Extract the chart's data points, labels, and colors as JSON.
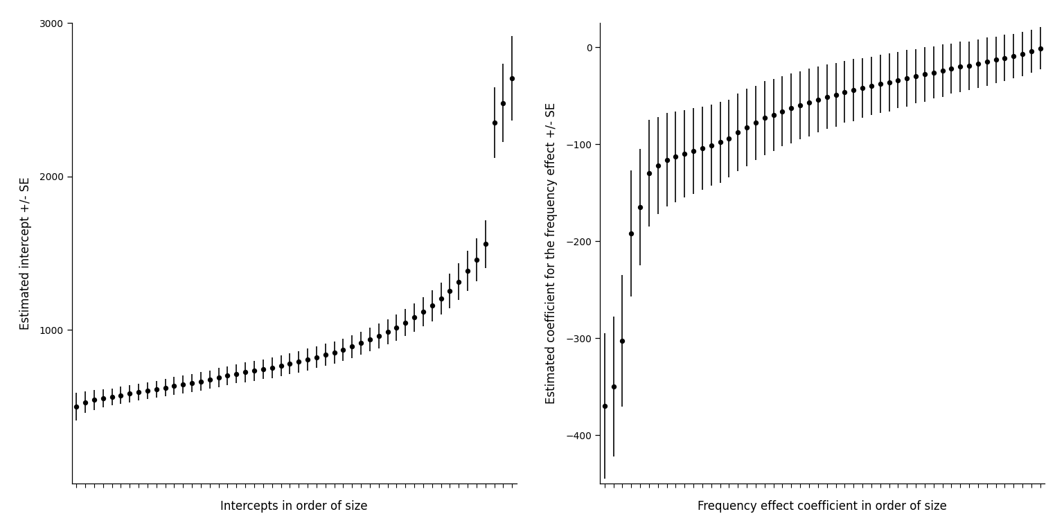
{
  "n_subjects": 50,
  "intercepts": [
    500,
    530,
    545,
    555,
    565,
    575,
    585,
    595,
    605,
    615,
    625,
    635,
    645,
    655,
    665,
    678,
    690,
    702,
    715,
    725,
    735,
    745,
    755,
    768,
    780,
    793,
    808,
    822,
    838,
    855,
    872,
    893,
    915,
    938,
    962,
    988,
    1015,
    1048,
    1082,
    1118,
    1158,
    1205,
    1255,
    1315,
    1385,
    1460,
    1560,
    2350,
    2480,
    2640
  ],
  "intercept_se": [
    90,
    70,
    65,
    60,
    55,
    55,
    55,
    55,
    55,
    55,
    58,
    58,
    58,
    58,
    60,
    60,
    62,
    62,
    62,
    65,
    65,
    65,
    68,
    68,
    68,
    70,
    70,
    70,
    72,
    72,
    72,
    75,
    75,
    78,
    80,
    82,
    85,
    88,
    92,
    95,
    100,
    105,
    112,
    120,
    130,
    140,
    155,
    230,
    255,
    275
  ],
  "slopes": [
    -370,
    -350,
    -303,
    -192,
    -165,
    -130,
    -122,
    -116,
    -113,
    -110,
    -107,
    -104,
    -101,
    -98,
    -94,
    -88,
    -83,
    -78,
    -73,
    -70,
    -66,
    -63,
    -60,
    -57,
    -54,
    -51,
    -49,
    -46,
    -44,
    -42,
    -40,
    -38,
    -36,
    -34,
    -32,
    -30,
    -28,
    -26,
    -24,
    -22,
    -20,
    -19,
    -17,
    -15,
    -13,
    -11,
    -9,
    -7,
    -4,
    -1
  ],
  "slope_se": [
    75,
    72,
    68,
    65,
    60,
    55,
    50,
    48,
    47,
    45,
    44,
    43,
    42,
    42,
    40,
    40,
    40,
    38,
    38,
    37,
    36,
    36,
    35,
    35,
    34,
    33,
    33,
    32,
    32,
    31,
    30,
    30,
    30,
    29,
    29,
    28,
    28,
    27,
    27,
    26,
    26,
    25,
    25,
    25,
    24,
    24,
    23,
    23,
    22,
    22
  ],
  "ylabel_left": "Estimated intercept +/- SE",
  "ylabel_right": "Estimated coefficient for the frequency effect +/- SE",
  "xlabel_left": "Intercepts in order of size",
  "xlabel_right": "Frequency effect coefficient in order of size",
  "ylim_left": [
    0,
    3000
  ],
  "ylim_right": [
    -450,
    25
  ],
  "yticks_left": [
    1000,
    2000,
    3000
  ],
  "yticks_right": [
    -400,
    -300,
    -200,
    -100,
    0
  ],
  "bg_color": "#ffffff",
  "point_color": "#000000",
  "line_color": "#000000"
}
